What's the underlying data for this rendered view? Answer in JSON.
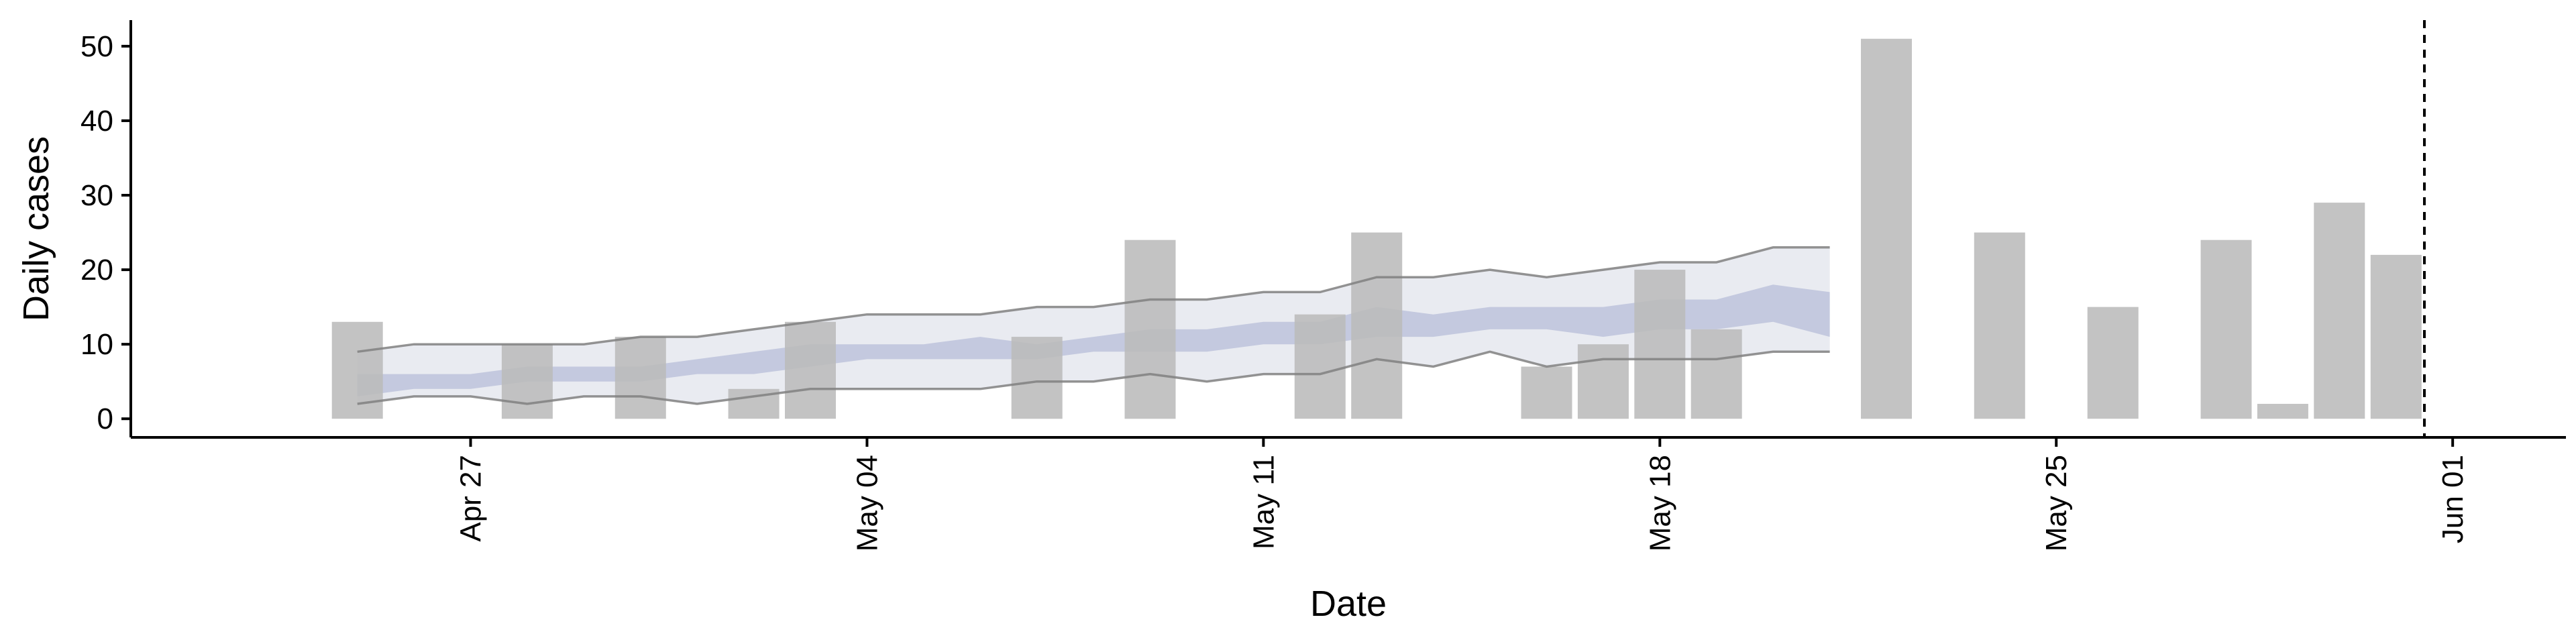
{
  "chart_data": {
    "type": "bar",
    "xlabel": "Date",
    "ylabel": "Daily cases",
    "x_axis": {
      "type": "date",
      "range": [
        "2020-04-21",
        "2020-06-03"
      ],
      "ticks": [
        {
          "date": "2020-04-27",
          "label": "Apr 27"
        },
        {
          "date": "2020-05-04",
          "label": "May 04"
        },
        {
          "date": "2020-05-11",
          "label": "May 11"
        },
        {
          "date": "2020-05-18",
          "label": "May 18"
        },
        {
          "date": "2020-05-25",
          "label": "May 25"
        },
        {
          "date": "2020-06-01",
          "label": "Jun 01"
        }
      ]
    },
    "y_axis": {
      "range": [
        -2.5,
        53.5
      ],
      "ticks": [
        0,
        10,
        20,
        30,
        40,
        50
      ]
    },
    "grid": false,
    "colors": {
      "bars": "#bbbbbb",
      "outer_band": "#e9ebf1",
      "inner_band": "#b7bed8",
      "band_outline": "#808080",
      "cutoff_line": "#000000"
    },
    "bars": [
      {
        "date": "2020-04-25",
        "value": 13
      },
      {
        "date": "2020-04-28",
        "value": 10
      },
      {
        "date": "2020-04-30",
        "value": 11
      },
      {
        "date": "2020-05-02",
        "value": 4
      },
      {
        "date": "2020-05-03",
        "value": 13
      },
      {
        "date": "2020-05-07",
        "value": 11
      },
      {
        "date": "2020-05-09",
        "value": 24
      },
      {
        "date": "2020-05-12",
        "value": 14
      },
      {
        "date": "2020-05-13",
        "value": 25
      },
      {
        "date": "2020-05-16",
        "value": 7
      },
      {
        "date": "2020-05-17",
        "value": 10
      },
      {
        "date": "2020-05-18",
        "value": 20
      },
      {
        "date": "2020-05-19",
        "value": 12
      },
      {
        "date": "2020-05-22",
        "value": 51
      },
      {
        "date": "2020-05-24",
        "value": 25
      },
      {
        "date": "2020-05-26",
        "value": 15
      },
      {
        "date": "2020-05-28",
        "value": 24
      },
      {
        "date": "2020-05-29",
        "value": 2
      },
      {
        "date": "2020-05-30",
        "value": 29
      },
      {
        "date": "2020-05-31",
        "value": 22
      }
    ],
    "estimate": {
      "dates": [
        "2020-04-25",
        "2020-04-26",
        "2020-04-27",
        "2020-04-28",
        "2020-04-29",
        "2020-04-30",
        "2020-05-01",
        "2020-05-02",
        "2020-05-03",
        "2020-05-04",
        "2020-05-05",
        "2020-05-06",
        "2020-05-07",
        "2020-05-08",
        "2020-05-09",
        "2020-05-10",
        "2020-05-11",
        "2020-05-12",
        "2020-05-13",
        "2020-05-14",
        "2020-05-15",
        "2020-05-16",
        "2020-05-17",
        "2020-05-18",
        "2020-05-19",
        "2020-05-20",
        "2020-05-21"
      ],
      "outer_upper": [
        9,
        10,
        10,
        10,
        10,
        11,
        11,
        12,
        13,
        14,
        14,
        14,
        15,
        15,
        16,
        16,
        17,
        17,
        19,
        19,
        20,
        19,
        20,
        21,
        21,
        23,
        23
      ],
      "outer_lower": [
        2,
        3,
        3,
        2,
        3,
        3,
        2,
        3,
        4,
        4,
        4,
        4,
        5,
        5,
        6,
        5,
        6,
        6,
        8,
        7,
        9,
        7,
        8,
        8,
        8,
        9,
        9
      ],
      "inner_upper": [
        6,
        6,
        6,
        7,
        7,
        7,
        8,
        9,
        10,
        10,
        10,
        11,
        10,
        11,
        12,
        12,
        13,
        13,
        15,
        14,
        15,
        15,
        15,
        16,
        16,
        18,
        17
      ],
      "inner_lower": [
        3,
        4,
        4,
        5,
        5,
        5,
        6,
        6,
        7,
        8,
        8,
        8,
        8,
        9,
        9,
        9,
        10,
        10,
        11,
        11,
        12,
        12,
        11,
        12,
        12,
        13,
        11
      ],
      "outlined": true
    },
    "cutoff_date": "2020-05-31T12:00"
  }
}
